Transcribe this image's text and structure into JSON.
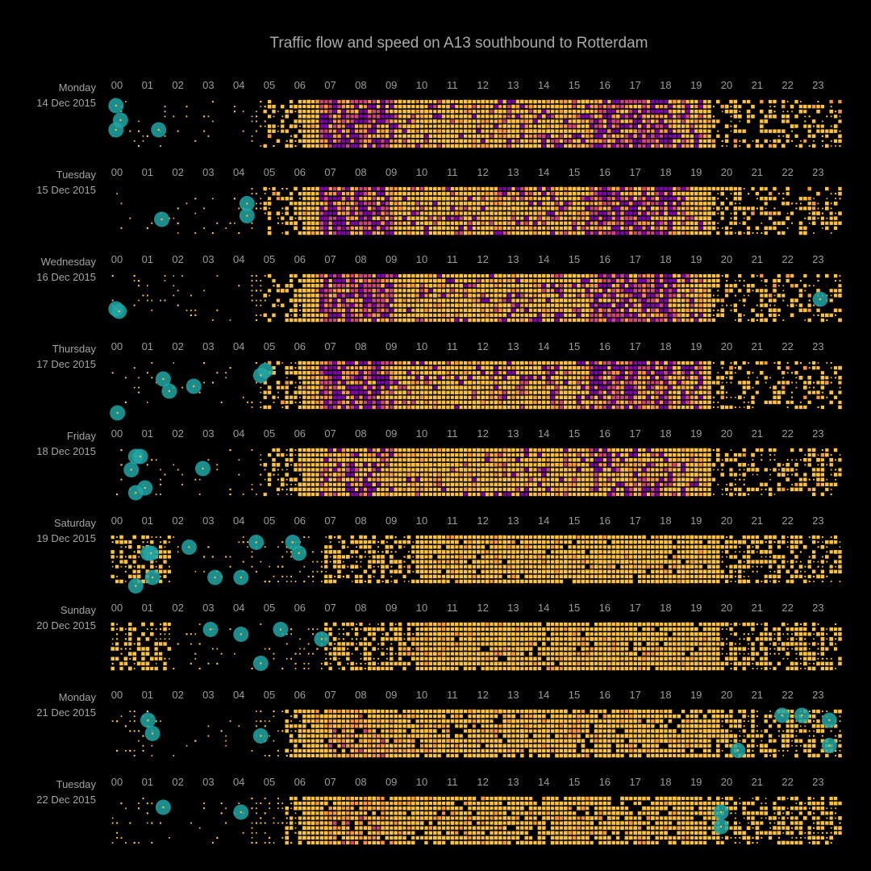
{
  "chart_data": {
    "type": "heatmap",
    "title": "Traffic flow and speed on A13 southbound to Rotterdam",
    "xlabel": "",
    "ylabel": "",
    "hour_labels": [
      "00",
      "01",
      "02",
      "03",
      "04",
      "05",
      "06",
      "07",
      "08",
      "09",
      "10",
      "11",
      "12",
      "13",
      "14",
      "15",
      "16",
      "17",
      "18",
      "19",
      "20",
      "21",
      "22",
      "23"
    ],
    "colors": {
      "background": "#000000",
      "free_flow": "#fdc140",
      "moderate": "#f89540",
      "slow": "#cc4778",
      "congested": "#7e03a8",
      "incident_marker": "#21a6a6"
    },
    "days": [
      {
        "weekday": "Monday",
        "date": "14 Dec 2015",
        "pattern": "weekday",
        "incidents": [
          [
            0.1,
            0
          ],
          [
            0.25,
            0.6
          ],
          [
            0.1,
            1
          ],
          [
            1.5,
            1
          ]
        ]
      },
      {
        "weekday": "Tuesday",
        "date": "15 Dec 2015",
        "pattern": "weekday",
        "incidents": [
          [
            4.4,
            0.45
          ],
          [
            4.4,
            0.95
          ],
          [
            1.6,
            1.1
          ]
        ]
      },
      {
        "weekday": "Wednesday",
        "date": "16 Dec 2015",
        "pattern": "weekday",
        "incidents": [
          [
            0.1,
            1.2
          ],
          [
            0.2,
            1.3
          ],
          [
            23.2,
            0.8
          ]
        ]
      },
      {
        "weekday": "Thursday",
        "date": "17 Dec 2015",
        "pattern": "weekday",
        "incidents": [
          [
            1.65,
            0.5
          ],
          [
            1.85,
            1.0
          ],
          [
            2.65,
            0.8
          ],
          [
            5.0,
            0.15
          ],
          [
            4.85,
            0.35
          ],
          [
            0.15,
            1.9
          ]
        ]
      },
      {
        "weekday": "Friday",
        "date": "18 Dec 2015",
        "pattern": "friday",
        "incidents": [
          [
            0.75,
            0.1
          ],
          [
            0.9,
            0.1
          ],
          [
            0.6,
            0.65
          ],
          [
            1.05,
            1.4
          ],
          [
            0.75,
            1.6
          ],
          [
            2.95,
            0.6
          ]
        ]
      },
      {
        "weekday": "Saturday",
        "date": "19 Dec 2015",
        "pattern": "weekend",
        "incidents": [
          [
            1.15,
            0.5
          ],
          [
            1.25,
            0.5
          ],
          [
            2.5,
            0.25
          ],
          [
            1.3,
            1.5
          ],
          [
            0.75,
            1.85
          ],
          [
            3.35,
            1.5
          ],
          [
            4.2,
            1.5
          ],
          [
            4.7,
            0.05
          ],
          [
            5.9,
            0.05
          ],
          [
            6.1,
            0.5
          ]
        ]
      },
      {
        "weekday": "Sunday",
        "date": "20 Dec 2015",
        "pattern": "weekend",
        "incidents": [
          [
            3.2,
            0.05
          ],
          [
            4.2,
            0.25
          ],
          [
            5.5,
            0.05
          ],
          [
            6.85,
            0.45
          ],
          [
            4.85,
            1.45
          ]
        ]
      },
      {
        "weekday": "Monday",
        "date": "21 Dec 2015",
        "pattern": "holiday",
        "incidents": [
          [
            1.15,
            0.2
          ],
          [
            1.3,
            0.75
          ],
          [
            4.85,
            0.85
          ],
          [
            21.95,
            0.0
          ],
          [
            22.6,
            0.0
          ],
          [
            23.5,
            0.2
          ],
          [
            20.5,
            1.45
          ],
          [
            23.5,
            1.25
          ]
        ]
      },
      {
        "weekday": "Tuesday",
        "date": "22 Dec 2015",
        "pattern": "holiday",
        "incidents": [
          [
            1.65,
            0.2
          ],
          [
            4.2,
            0.4
          ],
          [
            19.95,
            0.4
          ],
          [
            19.95,
            1.0
          ]
        ]
      }
    ]
  }
}
